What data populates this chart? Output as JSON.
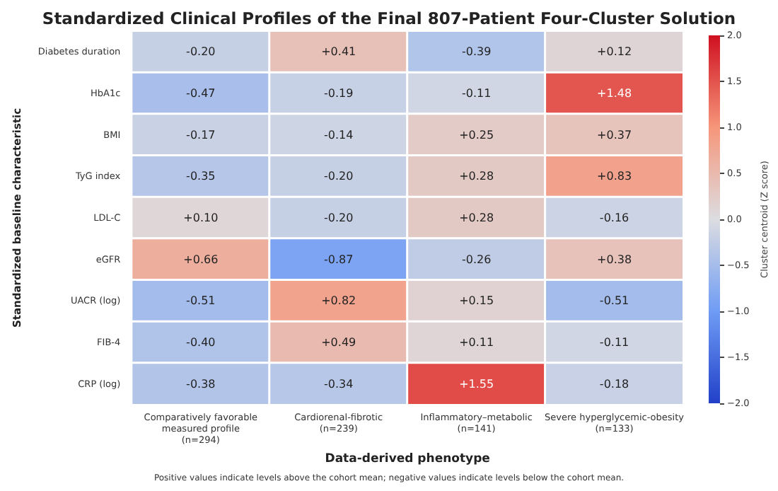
{
  "chart_data": {
    "type": "heatmap",
    "title": "Standardized Clinical Profiles of the Final 807-Patient Four-Cluster Solution",
    "xlabel": "Data-derived phenotype",
    "ylabel": "Standardized baseline characteristic",
    "clabel": "Cluster centroid (Z score)",
    "categories": [
      "Comparatively favorable\nmeasured profile\n(n=294)",
      "Cardiorenal-fibrotic\n(n=239)",
      "Inflammatory–metabolic\n(n=141)",
      "Severe hyperglycemic-obesity\n(n=133)"
    ],
    "y_categories": [
      "Diabetes duration",
      "HbA1c",
      "BMI",
      "TyG index",
      "LDL-C",
      "eGFR",
      "UACR (log)",
      "FIB-4",
      "CRP (log)"
    ],
    "cells": [
      [
        -0.2,
        0.41,
        -0.39,
        0.12
      ],
      [
        -0.47,
        -0.19,
        -0.11,
        1.48
      ],
      [
        -0.17,
        -0.14,
        0.25,
        0.37
      ],
      [
        -0.35,
        -0.2,
        0.28,
        0.83
      ],
      [
        0.1,
        -0.2,
        0.28,
        -0.16
      ],
      [
        0.66,
        -0.87,
        -0.26,
        0.38
      ],
      [
        -0.51,
        0.82,
        0.15,
        -0.51
      ],
      [
        -0.4,
        0.49,
        0.11,
        -0.11
      ],
      [
        -0.38,
        -0.34,
        1.55,
        -0.18
      ]
    ],
    "cell_labels": [
      [
        "-0.20",
        "+0.41",
        "-0.39",
        "+0.12"
      ],
      [
        "-0.47",
        "-0.19",
        "-0.11",
        "+1.48"
      ],
      [
        "-0.17",
        "-0.14",
        "+0.25",
        "+0.37"
      ],
      [
        "-0.35",
        "-0.20",
        "+0.28",
        "+0.83"
      ],
      [
        "+0.10",
        "-0.20",
        "+0.28",
        "-0.16"
      ],
      [
        "+0.66",
        "-0.87",
        "-0.26",
        "+0.38"
      ],
      [
        "-0.51",
        "+0.82",
        "+0.15",
        "-0.51"
      ],
      [
        "-0.40",
        "+0.49",
        "+0.11",
        "-0.11"
      ],
      [
        "-0.38",
        "-0.34",
        "+1.55",
        "-0.18"
      ]
    ],
    "clim": [
      -2,
      2
    ],
    "cticks": [
      {
        "value": -2,
        "label": "−2.0"
      },
      {
        "value": -1.5,
        "label": "−1.5"
      },
      {
        "value": -1,
        "label": "−1.0"
      },
      {
        "value": -0.5,
        "label": "−0.5"
      },
      {
        "value": 0,
        "label": "0.0"
      },
      {
        "value": 0.5,
        "label": "0.5"
      },
      {
        "value": 1,
        "label": "1.0"
      },
      {
        "value": 1.5,
        "label": "1.5"
      },
      {
        "value": 2,
        "label": "2.0"
      }
    ],
    "annotations": [
      "Positive values indicate levels above the cohort mean; negative values indicate levels below the cohort mean."
    ]
  }
}
